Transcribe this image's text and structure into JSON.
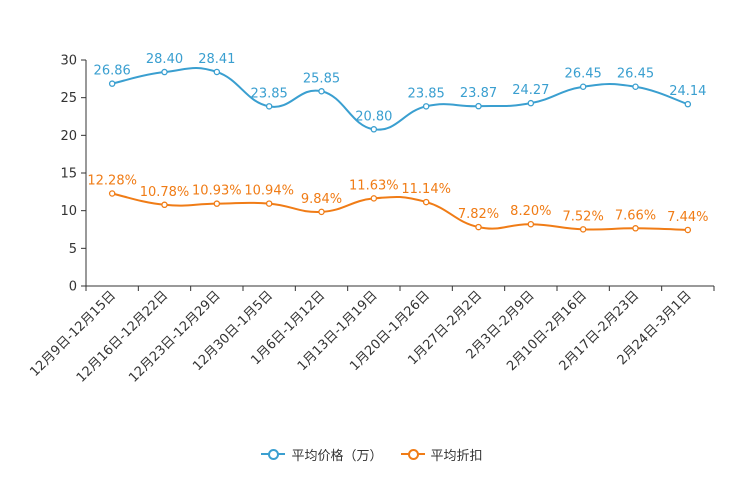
{
  "chart_data": {
    "type": "line",
    "categories": [
      "12月9日-12月15日",
      "12月16日-12月22日",
      "12月23日-12月29日",
      "12月30日-1月5日",
      "1月6日-1月12日",
      "1月13日-1月19日",
      "1月20日-1月26日",
      "1月27日-2月2日",
      "2月3日-2月9日",
      "2月10日-2月16日",
      "2月17日-2月23日",
      "2月24日-3月1日"
    ],
    "yticks": [
      "0",
      "5",
      "10",
      "15",
      "20",
      "25",
      "30"
    ],
    "ylim": [
      0,
      30
    ],
    "series": [
      {
        "name": "平均价格（万）",
        "color": "#3a9fd0",
        "values": [
          26.86,
          28.4,
          28.41,
          23.85,
          25.85,
          20.8,
          23.85,
          23.87,
          24.27,
          26.45,
          26.45,
          24.14
        ],
        "labels": [
          "26.86",
          "28.40",
          "28.41",
          "23.85",
          "25.85",
          "20.80",
          "23.85",
          "23.87",
          "24.27",
          "26.45",
          "26.45",
          "24.14"
        ]
      },
      {
        "name": "平均折扣",
        "color": "#f07c16",
        "values": [
          12.28,
          10.78,
          10.93,
          10.94,
          9.84,
          11.63,
          11.14,
          7.82,
          8.2,
          7.52,
          7.66,
          7.44
        ],
        "labels": [
          "12.28%",
          "10.78%",
          "10.93%",
          "10.94%",
          "9.84%",
          "11.63%",
          "11.14%",
          "7.82%",
          "8.20%",
          "7.52%",
          "7.66%",
          "7.44%"
        ]
      }
    ],
    "legend_position": "bottom-center"
  }
}
